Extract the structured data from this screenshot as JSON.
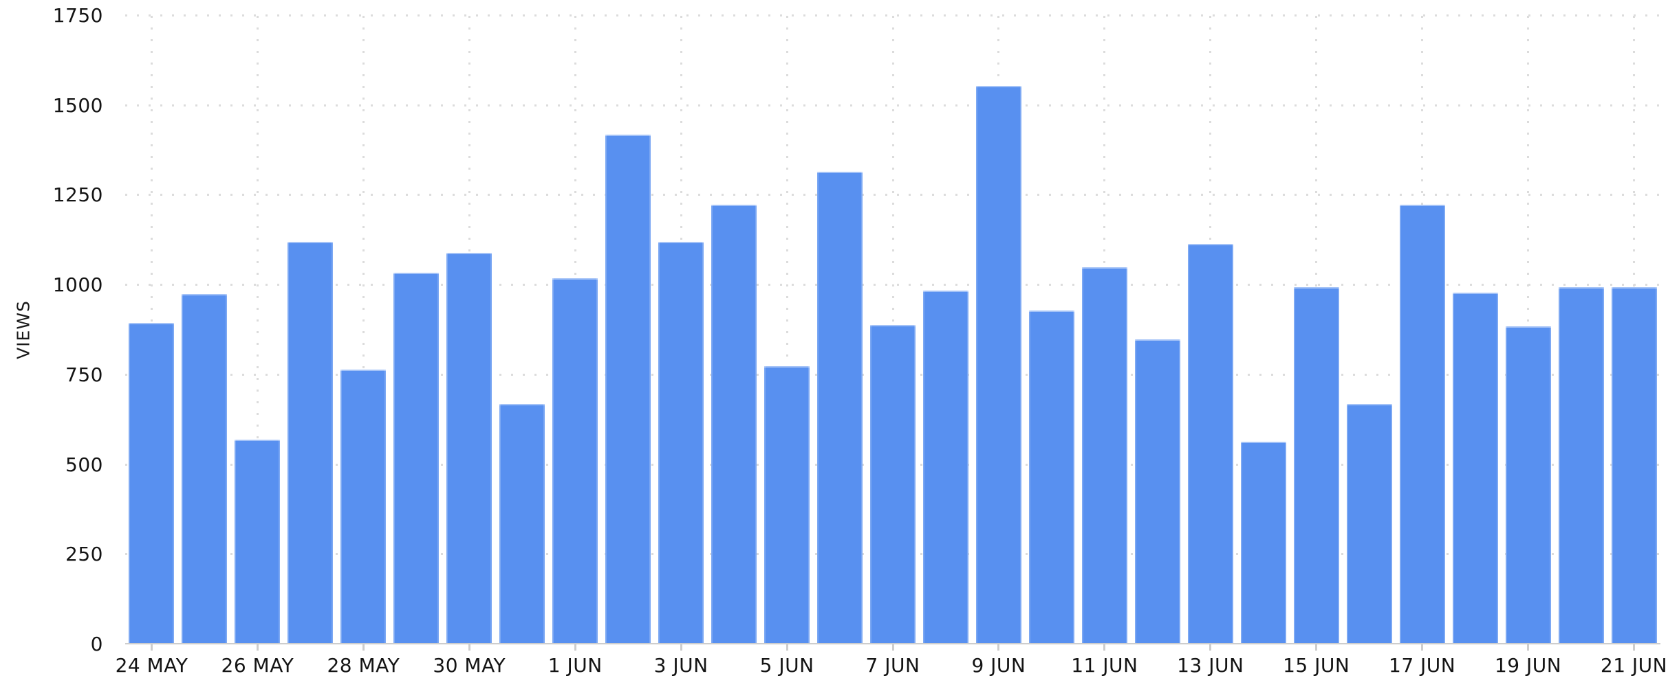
{
  "chart_data": {
    "type": "bar",
    "title": "",
    "xlabel": "",
    "ylabel": "VIEWS",
    "ylim": [
      0,
      1750
    ],
    "y_ticks": [
      0,
      250,
      500,
      750,
      1000,
      1250,
      1500,
      1750
    ],
    "grid": "dotted",
    "legend": "none",
    "bar_color": "#5890f0",
    "categories": [
      "24 MAY",
      "25 MAY",
      "26 MAY",
      "27 MAY",
      "28 MAY",
      "29 MAY",
      "30 MAY",
      "31 MAY",
      "1 JUN",
      "2 JUN",
      "3 JUN",
      "4 JUN",
      "5 JUN",
      "6 JUN",
      "7 JUN",
      "8 JUN",
      "9 JUN",
      "10 JUN",
      "11 JUN",
      "12 JUN",
      "13 JUN",
      "14 JUN",
      "15 JUN",
      "16 JUN",
      "17 JUN",
      "18 JUN",
      "19 JUN",
      "20 JUN",
      "21 JUN"
    ],
    "values": [
      895,
      975,
      570,
      1120,
      765,
      1035,
      1090,
      670,
      1020,
      1420,
      1120,
      1225,
      775,
      1315,
      890,
      985,
      1555,
      930,
      1050,
      850,
      1115,
      565,
      995,
      670,
      1225,
      980,
      885,
      995,
      995
    ],
    "x_tick_labels_shown": [
      "24 MAY",
      "26 MAY",
      "28 MAY",
      "30 MAY",
      "1 JUN",
      "3 JUN",
      "5 JUN",
      "7 JUN",
      "9 JUN",
      "11 JUN",
      "13 JUN",
      "15 JUN",
      "17 JUN",
      "19 JUN",
      "21 JUN"
    ]
  }
}
